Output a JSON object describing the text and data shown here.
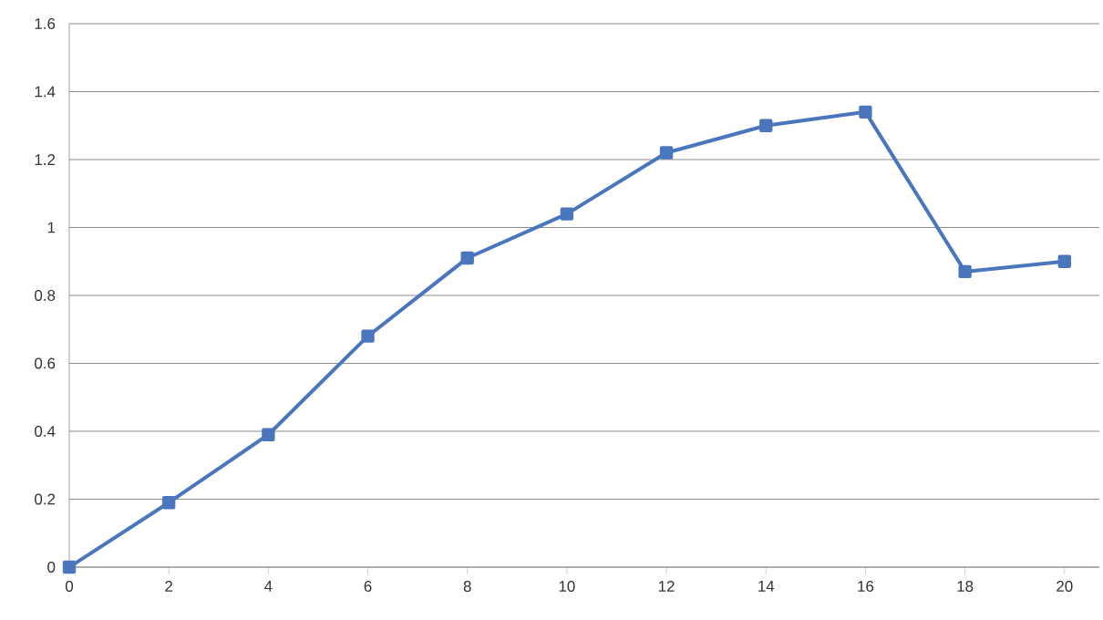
{
  "chart_data": {
    "type": "line",
    "x": [
      0,
      2,
      4,
      6,
      8,
      10,
      12,
      14,
      16,
      18,
      20
    ],
    "series": [
      {
        "color": "#4a76be",
        "values": [
          0,
          0.19,
          0.39,
          0.68,
          0.91,
          1.04,
          1.22,
          1.3,
          1.34,
          0.87,
          0.9
        ]
      }
    ],
    "xlim": [
      0,
      20.7
    ],
    "xticks": [
      0,
      2,
      4,
      6,
      8,
      10,
      12,
      14,
      16,
      18,
      20
    ],
    "ylim": [
      0,
      1.6
    ],
    "yticks": [
      0,
      0.2,
      0.4,
      0.6,
      0.8,
      1,
      1.2,
      1.4,
      1.6
    ],
    "grid": "y",
    "marker": "square",
    "line_style": "solid"
  }
}
